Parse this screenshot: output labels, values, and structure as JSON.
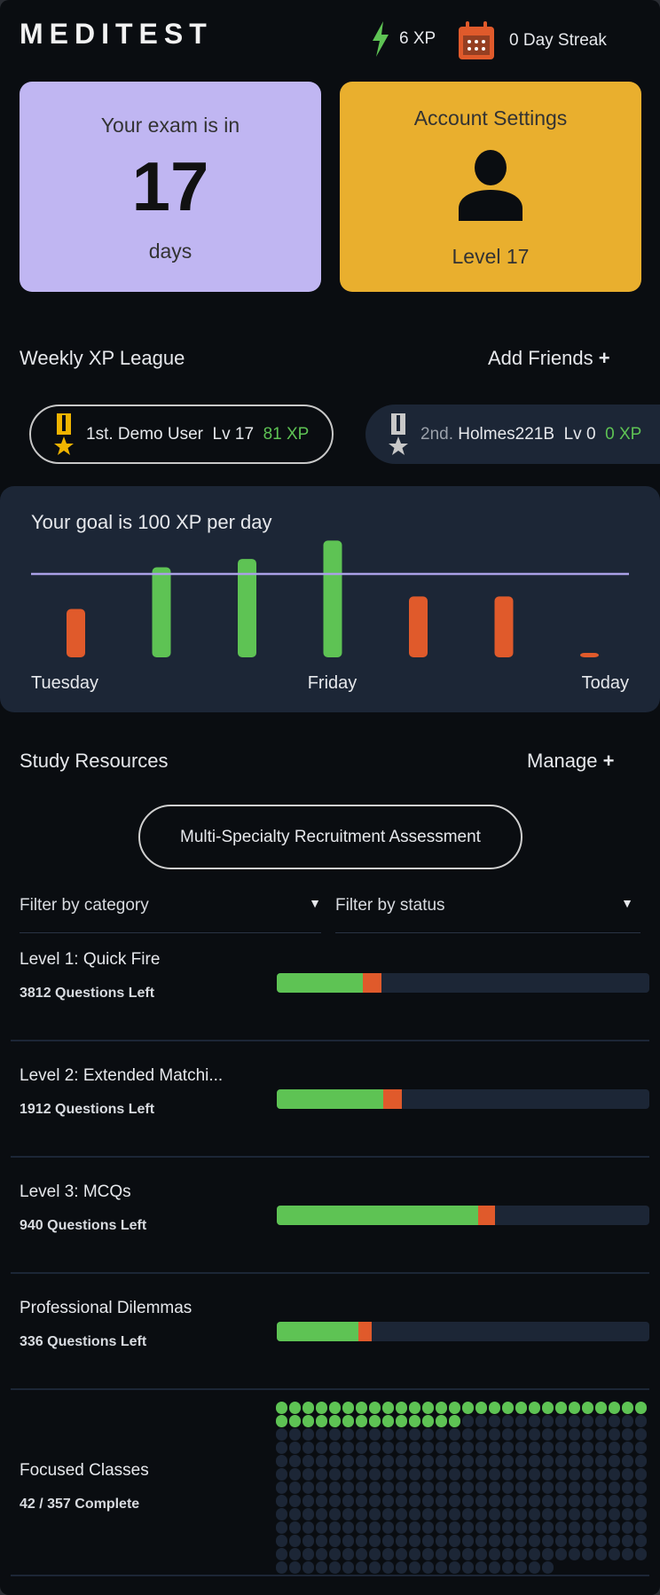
{
  "header": {
    "logo": "MEDITEST",
    "xp": "6 XP",
    "streak": "0 Day Streak",
    "xp_icon": "lightning-icon",
    "streak_icon": "calendar-icon"
  },
  "exam_card": {
    "prefix": "Your exam is in",
    "days": "17",
    "suffix": "days"
  },
  "account_card": {
    "title": "Account Settings",
    "level": "Level 17",
    "icon": "user-icon"
  },
  "league": {
    "title": "Weekly XP League",
    "add_friends": "Add Friends",
    "entries": [
      {
        "rank": "1st.",
        "name": "Demo User",
        "level": "Lv 17",
        "xp": "81 XP",
        "medal_color": "#f0b400"
      },
      {
        "rank": "2nd.",
        "name": "Holmes221B",
        "level": "Lv 0",
        "xp": "0 XP",
        "medal_color": "#c8c8c8"
      }
    ]
  },
  "chart_data": {
    "type": "bar",
    "title": "Your goal is 100 XP per day",
    "goal": 100,
    "categories": [
      "Tuesday",
      "",
      "",
      "Friday",
      "",
      "",
      "Today"
    ],
    "values": [
      58,
      108,
      118,
      140,
      73,
      73,
      5
    ],
    "goal_line_color": "#a9a0e6",
    "above_goal_color": "#5ec354",
    "below_goal_color": "#e05a2b"
  },
  "study": {
    "title": "Study Resources",
    "manage": "Manage",
    "exam_button": "Multi-Specialty Recruitment Assessment",
    "filter_category": "Filter by category",
    "filter_status": "Filter by status",
    "resources": [
      {
        "title": "Level 1: Quick Fire",
        "subtitle": "3812 Questions Left",
        "correct_pct": 23,
        "incorrect_pct": 5
      },
      {
        "title": "Level 2: Extended Matchi...",
        "subtitle": "1912 Questions Left",
        "correct_pct": 28.5,
        "incorrect_pct": 5
      },
      {
        "title": "Level 3: MCQs",
        "subtitle": "940 Questions Left",
        "correct_pct": 54,
        "incorrect_pct": 4.5
      },
      {
        "title": "Professional Dilemmas",
        "subtitle": "336 Questions Left",
        "correct_pct": 22,
        "incorrect_pct": 3.5
      }
    ],
    "focused": {
      "title": "Focused Classes",
      "subtitle": "42 / 357 Complete",
      "complete": 42,
      "total": 357
    }
  },
  "colors": {
    "green": "#5ec354",
    "orange": "#e05a2b",
    "track": "#1c2636"
  }
}
